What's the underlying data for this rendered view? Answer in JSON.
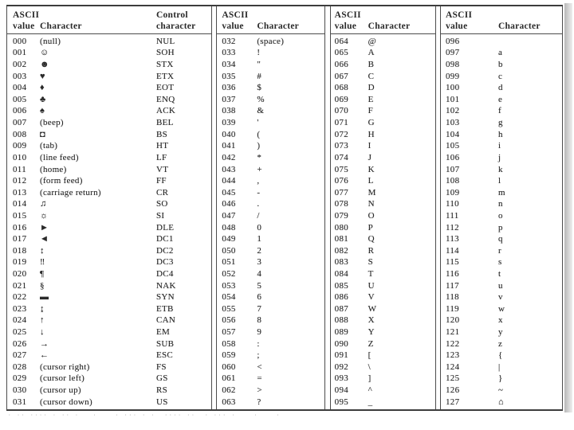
{
  "table": {
    "panels": [
      {
        "headers": [
          {
            "l1": "ASCII",
            "l2": "value",
            "name": "ascii-value"
          },
          {
            "l1": "",
            "l2": "Character",
            "name": "character"
          },
          {
            "l1": "Control",
            "l2": "character",
            "name": "control-character"
          }
        ],
        "rows": [
          [
            "000",
            "(null)",
            "NUL"
          ],
          [
            "001",
            "☺",
            "SOH"
          ],
          [
            "002",
            "☻",
            "STX"
          ],
          [
            "003",
            "♥",
            "ETX"
          ],
          [
            "004",
            "♦",
            "EOT"
          ],
          [
            "005",
            "♣",
            "ENQ"
          ],
          [
            "006",
            "♠",
            "ACK"
          ],
          [
            "007",
            "(beep)",
            "BEL"
          ],
          [
            "008",
            "◘",
            "BS"
          ],
          [
            "009",
            "(tab)",
            "HT"
          ],
          [
            "010",
            "(line feed)",
            "LF"
          ],
          [
            "011",
            "(home)",
            "VT"
          ],
          [
            "012",
            "(form feed)",
            "FF"
          ],
          [
            "013",
            "(carriage return)",
            "CR"
          ],
          [
            "014",
            "♫",
            "SO"
          ],
          [
            "015",
            "☼",
            "SI"
          ],
          [
            "016",
            "►",
            "DLE"
          ],
          [
            "017",
            "◄",
            "DC1"
          ],
          [
            "018",
            "↕",
            "DC2"
          ],
          [
            "019",
            "‼",
            "DC3"
          ],
          [
            "020",
            "¶",
            "DC4"
          ],
          [
            "021",
            "§",
            "NAK"
          ],
          [
            "022",
            "▬",
            "SYN"
          ],
          [
            "023",
            "↨",
            "ETB"
          ],
          [
            "024",
            "↑",
            "CAN"
          ],
          [
            "025",
            "↓",
            "EM"
          ],
          [
            "026",
            "→",
            "SUB"
          ],
          [
            "027",
            "←",
            "ESC"
          ],
          [
            "028",
            "(cursor right)",
            "FS"
          ],
          [
            "029",
            "(cursor left)",
            "GS"
          ],
          [
            "030",
            "(cursor up)",
            "RS"
          ],
          [
            "031",
            "(cursor down)",
            "US"
          ]
        ]
      },
      {
        "headers": [
          {
            "l1": "ASCII",
            "l2": "value",
            "name": "ascii-value"
          },
          {
            "l1": "",
            "l2": "Character",
            "name": "character"
          }
        ],
        "rows": [
          [
            "032",
            "(space)"
          ],
          [
            "033",
            "!"
          ],
          [
            "034",
            "\""
          ],
          [
            "035",
            "#"
          ],
          [
            "036",
            "$"
          ],
          [
            "037",
            "%"
          ],
          [
            "038",
            "&"
          ],
          [
            "039",
            "'"
          ],
          [
            "040",
            "("
          ],
          [
            "041",
            ")"
          ],
          [
            "042",
            "*"
          ],
          [
            "043",
            "+"
          ],
          [
            "044",
            ","
          ],
          [
            "045",
            "-"
          ],
          [
            "046",
            "."
          ],
          [
            "047",
            "/"
          ],
          [
            "048",
            "0"
          ],
          [
            "049",
            "1"
          ],
          [
            "050",
            "2"
          ],
          [
            "051",
            "3"
          ],
          [
            "052",
            "4"
          ],
          [
            "053",
            "5"
          ],
          [
            "054",
            "6"
          ],
          [
            "055",
            "7"
          ],
          [
            "056",
            "8"
          ],
          [
            "057",
            "9"
          ],
          [
            "058",
            ":"
          ],
          [
            "059",
            ";"
          ],
          [
            "060",
            "<"
          ],
          [
            "061",
            "="
          ],
          [
            "062",
            ">"
          ],
          [
            "063",
            "?"
          ]
        ]
      },
      {
        "headers": [
          {
            "l1": "ASCII",
            "l2": "value",
            "name": "ascii-value"
          },
          {
            "l1": "",
            "l2": "Character",
            "name": "character"
          }
        ],
        "rows": [
          [
            "064",
            "@"
          ],
          [
            "065",
            "A"
          ],
          [
            "066",
            "B"
          ],
          [
            "067",
            "C"
          ],
          [
            "068",
            "D"
          ],
          [
            "069",
            "E"
          ],
          [
            "070",
            "F"
          ],
          [
            "071",
            "G"
          ],
          [
            "072",
            "H"
          ],
          [
            "073",
            "I"
          ],
          [
            "074",
            "J"
          ],
          [
            "075",
            "K"
          ],
          [
            "076",
            "L"
          ],
          [
            "077",
            "M"
          ],
          [
            "078",
            "N"
          ],
          [
            "079",
            "O"
          ],
          [
            "080",
            "P"
          ],
          [
            "081",
            "Q"
          ],
          [
            "082",
            "R"
          ],
          [
            "083",
            "S"
          ],
          [
            "084",
            "T"
          ],
          [
            "085",
            "U"
          ],
          [
            "086",
            "V"
          ],
          [
            "087",
            "W"
          ],
          [
            "088",
            "X"
          ],
          [
            "089",
            "Y"
          ],
          [
            "090",
            "Z"
          ],
          [
            "091",
            "["
          ],
          [
            "092",
            "\\"
          ],
          [
            "093",
            "]"
          ],
          [
            "094",
            "^"
          ],
          [
            "095",
            "_"
          ]
        ]
      },
      {
        "headers": [
          {
            "l1": "ASCII",
            "l2": "value",
            "name": "ascii-value"
          },
          {
            "l1": "",
            "l2": "Character",
            "name": "character"
          }
        ],
        "rows": [
          [
            "096",
            ""
          ],
          [
            "097",
            "a"
          ],
          [
            "098",
            "b"
          ],
          [
            "099",
            "c"
          ],
          [
            "100",
            "d"
          ],
          [
            "101",
            "e"
          ],
          [
            "102",
            "f"
          ],
          [
            "103",
            "g"
          ],
          [
            "104",
            "h"
          ],
          [
            "105",
            "i"
          ],
          [
            "106",
            "j"
          ],
          [
            "107",
            "k"
          ],
          [
            "108",
            "l"
          ],
          [
            "109",
            "m"
          ],
          [
            "110",
            "n"
          ],
          [
            "111",
            "o"
          ],
          [
            "112",
            "p"
          ],
          [
            "113",
            "q"
          ],
          [
            "114",
            "r"
          ],
          [
            "115",
            "s"
          ],
          [
            "116",
            "t"
          ],
          [
            "117",
            "u"
          ],
          [
            "118",
            "v"
          ],
          [
            "119",
            "w"
          ],
          [
            "120",
            "x"
          ],
          [
            "121",
            "y"
          ],
          [
            "122",
            "z"
          ],
          [
            "123",
            "{"
          ],
          [
            "124",
            "|"
          ],
          [
            "125",
            "}"
          ],
          [
            "126",
            "~"
          ],
          [
            "127",
            "⌂"
          ]
        ]
      }
    ]
  },
  "footnote_marks": "· ·· ···· · ·· ·   ·    · ··· · ·  ···· ··  · ··· ·    ·    ·",
  "colors": {
    "ink": "#2a2a2a",
    "rule": "#4c4c4c",
    "scan_shadow": "#ababab",
    "paper": "#ffffff"
  }
}
